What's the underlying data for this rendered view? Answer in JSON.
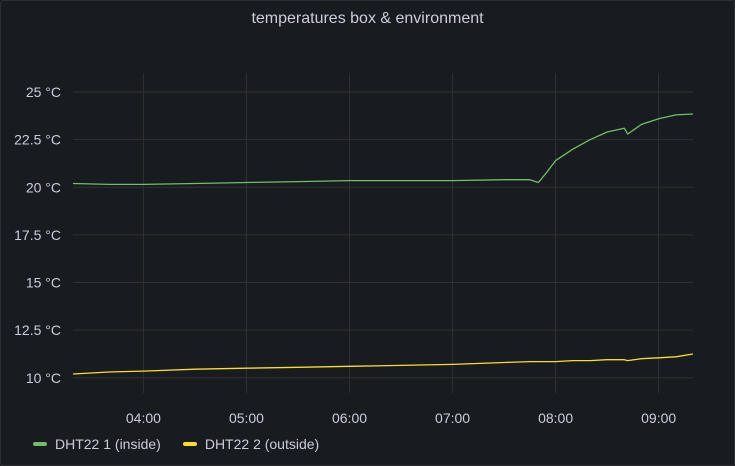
{
  "panel": {
    "title": "temperatures box & environment"
  },
  "colors": {
    "inside": "#73bf69",
    "outside": "#fade2a",
    "grid": "#2f3135",
    "text": "#ccccdc"
  },
  "chart_data": {
    "type": "line",
    "title": "temperatures box & environment",
    "xlabel": "",
    "ylabel": "",
    "x_ticks": [
      "04:00",
      "05:00",
      "06:00",
      "07:00",
      "08:00",
      "09:00"
    ],
    "y_ticks": [
      "25 °C",
      "22.5 °C",
      "20 °C",
      "17.5 °C",
      "15 °C",
      "12.5 °C",
      "10 °C"
    ],
    "y_tick_values": [
      25,
      22.5,
      20,
      17.5,
      15,
      12.5,
      10
    ],
    "xlim": [
      "03:19",
      "09:20"
    ],
    "ylim": [
      9.2,
      26
    ],
    "grid": true,
    "legend_position": "bottom-left",
    "x": [
      "03:19",
      "03:40",
      "04:00",
      "04:30",
      "05:00",
      "05:30",
      "06:00",
      "06:30",
      "07:00",
      "07:30",
      "07:45",
      "07:50",
      "07:55",
      "08:00",
      "08:10",
      "08:20",
      "08:30",
      "08:40",
      "08:42",
      "08:50",
      "09:00",
      "09:10",
      "09:20"
    ],
    "series": [
      {
        "name": "DHT22 1 (inside)",
        "values": [
          20.2,
          20.15,
          20.15,
          20.2,
          20.25,
          20.3,
          20.35,
          20.35,
          20.35,
          20.4,
          20.4,
          20.25,
          20.8,
          21.4,
          22.0,
          22.5,
          22.9,
          23.1,
          22.8,
          23.3,
          23.6,
          23.8,
          23.85
        ]
      },
      {
        "name": "DHT22 2 (outside)",
        "values": [
          10.2,
          10.3,
          10.35,
          10.45,
          10.5,
          10.55,
          10.6,
          10.65,
          10.7,
          10.8,
          10.85,
          10.85,
          10.85,
          10.85,
          10.9,
          10.9,
          10.95,
          10.95,
          10.9,
          11.0,
          11.05,
          11.1,
          11.25
        ]
      }
    ]
  }
}
